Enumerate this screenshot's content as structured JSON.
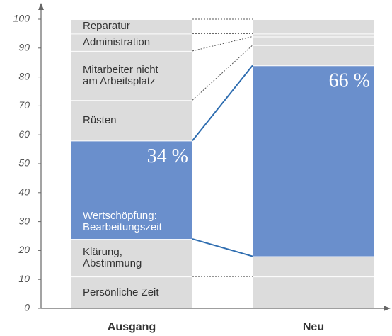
{
  "chart_data": {
    "type": "stacked_bar",
    "categories": [
      "Ausgang",
      "Neu"
    ],
    "series": [
      {
        "name": "Persönliche Zeit",
        "color": "#dcdcdc",
        "values": [
          11,
          11
        ]
      },
      {
        "name": "Klärung,\nAbstimmung",
        "color": "#dcdcdc",
        "values": [
          13,
          7
        ]
      },
      {
        "name": "Wertschöpfung:\nBearbeitungszeit",
        "color": "#6a8fcc",
        "values": [
          34,
          66
        ],
        "value_labels": [
          "34 %",
          "66 %"
        ]
      },
      {
        "name": "Rüsten",
        "color": "#dcdcdc",
        "values": [
          14,
          7
        ]
      },
      {
        "name": "Mitarbeiter nicht\nam Arbeitsplatz",
        "color": "#dcdcdc",
        "values": [
          17,
          3
        ]
      },
      {
        "name": "Administration",
        "color": "#dcdcdc",
        "values": [
          6,
          1
        ]
      },
      {
        "name": "Reparatur",
        "color": "#dcdcdc",
        "values": [
          5,
          5
        ]
      }
    ],
    "ylim": [
      0,
      100
    ],
    "yticks": [
      0,
      10,
      20,
      30,
      40,
      50,
      60,
      70,
      80,
      90,
      100
    ]
  }
}
